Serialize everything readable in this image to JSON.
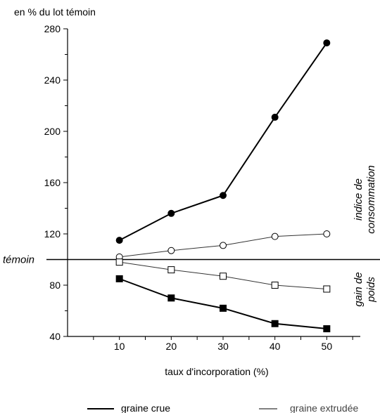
{
  "chart_data": {
    "type": "line",
    "ylabel": "en % du lot témoin",
    "xlabel": "taux d'incorporation (%)",
    "x": [
      10,
      20,
      30,
      40,
      50
    ],
    "xlim": [
      0,
      60
    ],
    "ylim": [
      40,
      280
    ],
    "yticks": [
      40,
      80,
      120,
      160,
      200,
      240,
      280
    ],
    "xticks": [
      10,
      20,
      30,
      40,
      50
    ],
    "reference": {
      "label": "témoin",
      "value": 100
    },
    "annotations": {
      "upper": [
        "indice de",
        "consommation"
      ],
      "lower": [
        "gain de",
        "poids"
      ]
    },
    "series": [
      {
        "key": "crue_indice",
        "group": "indice",
        "marker": "circle",
        "filled": true,
        "style": "heavy",
        "values": [
          115,
          136,
          150,
          211,
          269
        ]
      },
      {
        "key": "extrudee_indice",
        "group": "indice",
        "marker": "circle",
        "filled": false,
        "style": "light",
        "values": [
          102,
          107,
          111,
          118,
          120
        ]
      },
      {
        "key": "extrudee_gain",
        "group": "gain",
        "marker": "square",
        "filled": false,
        "style": "light",
        "values": [
          98,
          92,
          87,
          80,
          77
        ]
      },
      {
        "key": "crue_gain",
        "group": "gain",
        "marker": "square",
        "filled": true,
        "style": "heavy",
        "values": [
          85,
          70,
          62,
          50,
          46
        ]
      }
    ],
    "legend": [
      {
        "label": "graine crue",
        "style": "heavy"
      },
      {
        "label": "graine extrudée",
        "style": "light"
      }
    ],
    "grid": false,
    "legend_position": "bottom"
  }
}
